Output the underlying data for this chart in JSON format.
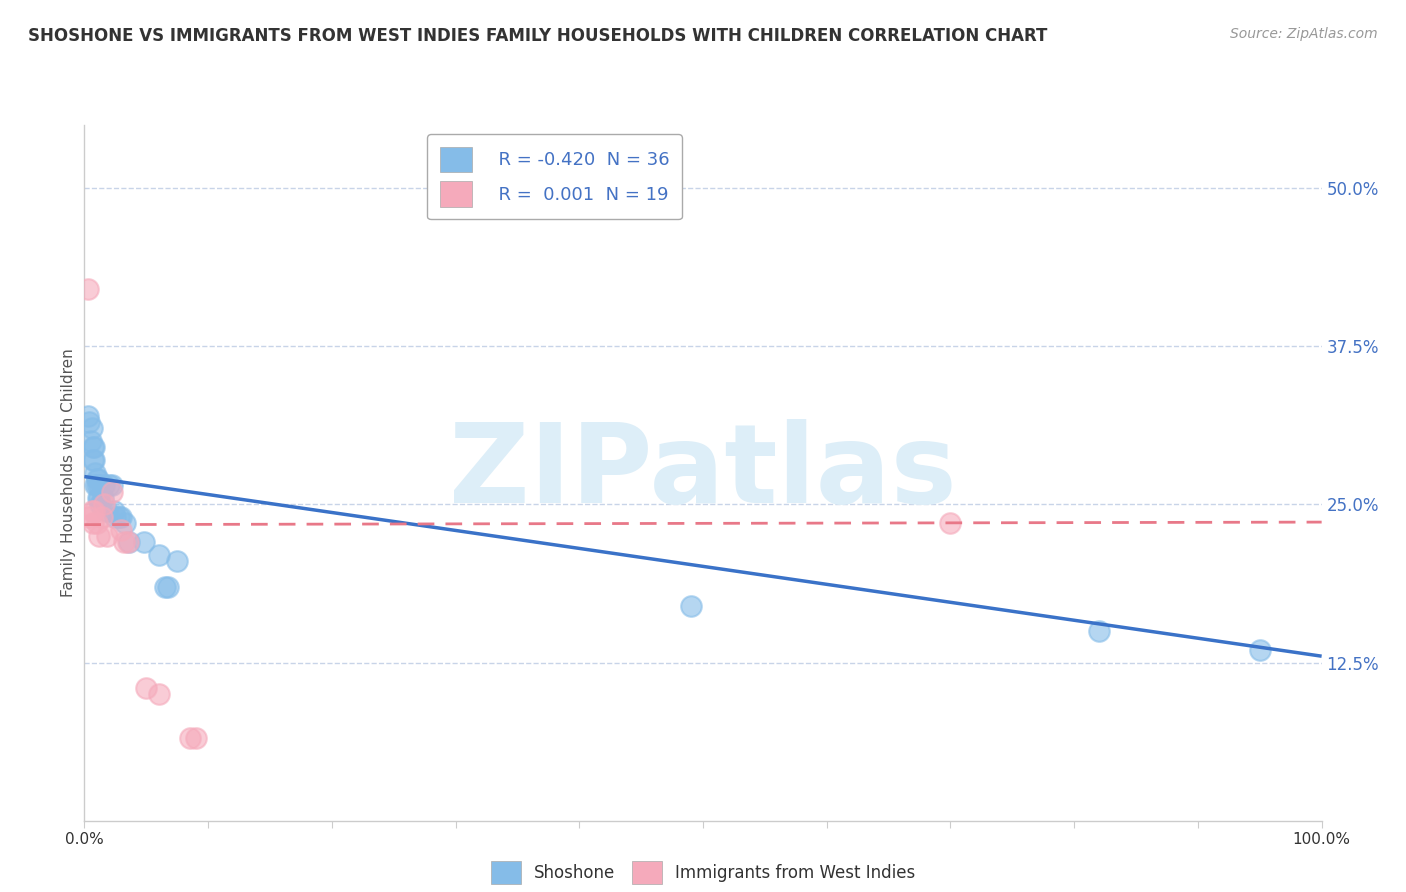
{
  "title": "SHOSHONE VS IMMIGRANTS FROM WEST INDIES FAMILY HOUSEHOLDS WITH CHILDREN CORRELATION CHART",
  "source": "Source: ZipAtlas.com",
  "ylabel": "Family Households with Children",
  "xlim": [
    0,
    1.0
  ],
  "ylim": [
    0,
    0.55
  ],
  "ytick_positions": [
    0.125,
    0.25,
    0.375,
    0.5
  ],
  "ytick_labels": [
    "12.5%",
    "25.0%",
    "37.5%",
    "50.0%"
  ],
  "shoshone_color": "#85bce8",
  "immigrants_color": "#f5aabb",
  "shoshone_line_color": "#3a72c8",
  "immigrants_line_color": "#e87888",
  "watermark": "ZIPatlas",
  "watermark_color": "#ddeef8",
  "background_color": "#ffffff",
  "grid_color": "#c8d4e8",
  "shoshone_x": [
    0.003,
    0.004,
    0.005,
    0.006,
    0.007,
    0.007,
    0.008,
    0.008,
    0.009,
    0.009,
    0.01,
    0.01,
    0.011,
    0.011,
    0.012,
    0.012,
    0.013,
    0.015,
    0.016,
    0.018,
    0.02,
    0.022,
    0.024,
    0.025,
    0.028,
    0.03,
    0.033,
    0.036,
    0.048,
    0.06,
    0.065,
    0.068,
    0.075,
    0.49,
    0.82,
    0.95
  ],
  "shoshone_y": [
    0.32,
    0.315,
    0.3,
    0.31,
    0.295,
    0.285,
    0.295,
    0.285,
    0.275,
    0.265,
    0.27,
    0.265,
    0.27,
    0.255,
    0.255,
    0.265,
    0.25,
    0.255,
    0.265,
    0.245,
    0.265,
    0.265,
    0.245,
    0.24,
    0.24,
    0.24,
    0.235,
    0.22,
    0.22,
    0.21,
    0.185,
    0.185,
    0.205,
    0.17,
    0.15,
    0.135
  ],
  "immigrants_x": [
    0.003,
    0.004,
    0.006,
    0.007,
    0.008,
    0.01,
    0.012,
    0.014,
    0.016,
    0.018,
    0.022,
    0.03,
    0.032,
    0.035,
    0.05,
    0.06,
    0.085,
    0.09,
    0.7
  ],
  "immigrants_y": [
    0.42,
    0.24,
    0.245,
    0.235,
    0.245,
    0.235,
    0.225,
    0.24,
    0.25,
    0.225,
    0.26,
    0.23,
    0.22,
    0.22,
    0.105,
    0.1,
    0.065,
    0.065,
    0.235
  ],
  "shoshone_line_x0": 0.0,
  "shoshone_line_x1": 1.0,
  "shoshone_line_y0": 0.272,
  "shoshone_line_y1": 0.13,
  "immigrants_line_x0": 0.0,
  "immigrants_line_x1": 1.0,
  "immigrants_line_y0": 0.234,
  "immigrants_line_y1": 0.236
}
